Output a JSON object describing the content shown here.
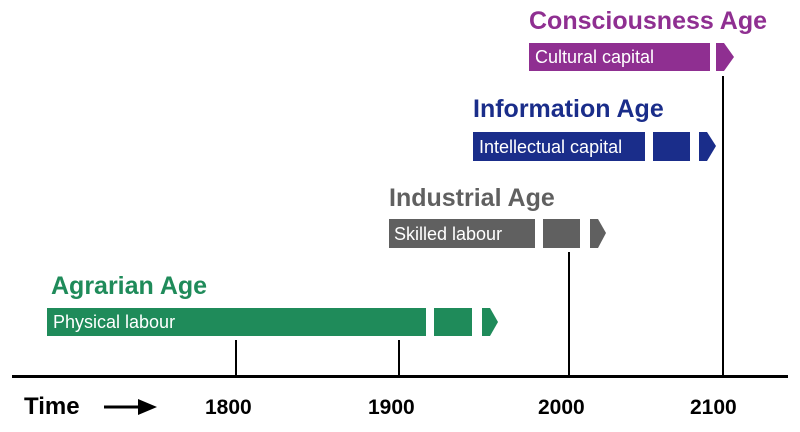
{
  "colors": {
    "agrarian": "#1f8b5a",
    "industrial": "#606060",
    "information": "#1a2d8a",
    "consciousness": "#8f2f91",
    "axis": "#000000"
  },
  "axis": {
    "time_label": "Time",
    "time_arrow_icon": "right-arrow-icon",
    "ticks": [
      "1800",
      "1900",
      "2000",
      "2100"
    ]
  },
  "ages": [
    {
      "title": "Agrarian Age",
      "capital": "Physical labour"
    },
    {
      "title": "Industrial Age",
      "capital": "Skilled labour"
    },
    {
      "title": "Information Age",
      "capital": "Intellectual capital"
    },
    {
      "title": "Consciousness Age",
      "capital": "Cultural capital"
    }
  ]
}
